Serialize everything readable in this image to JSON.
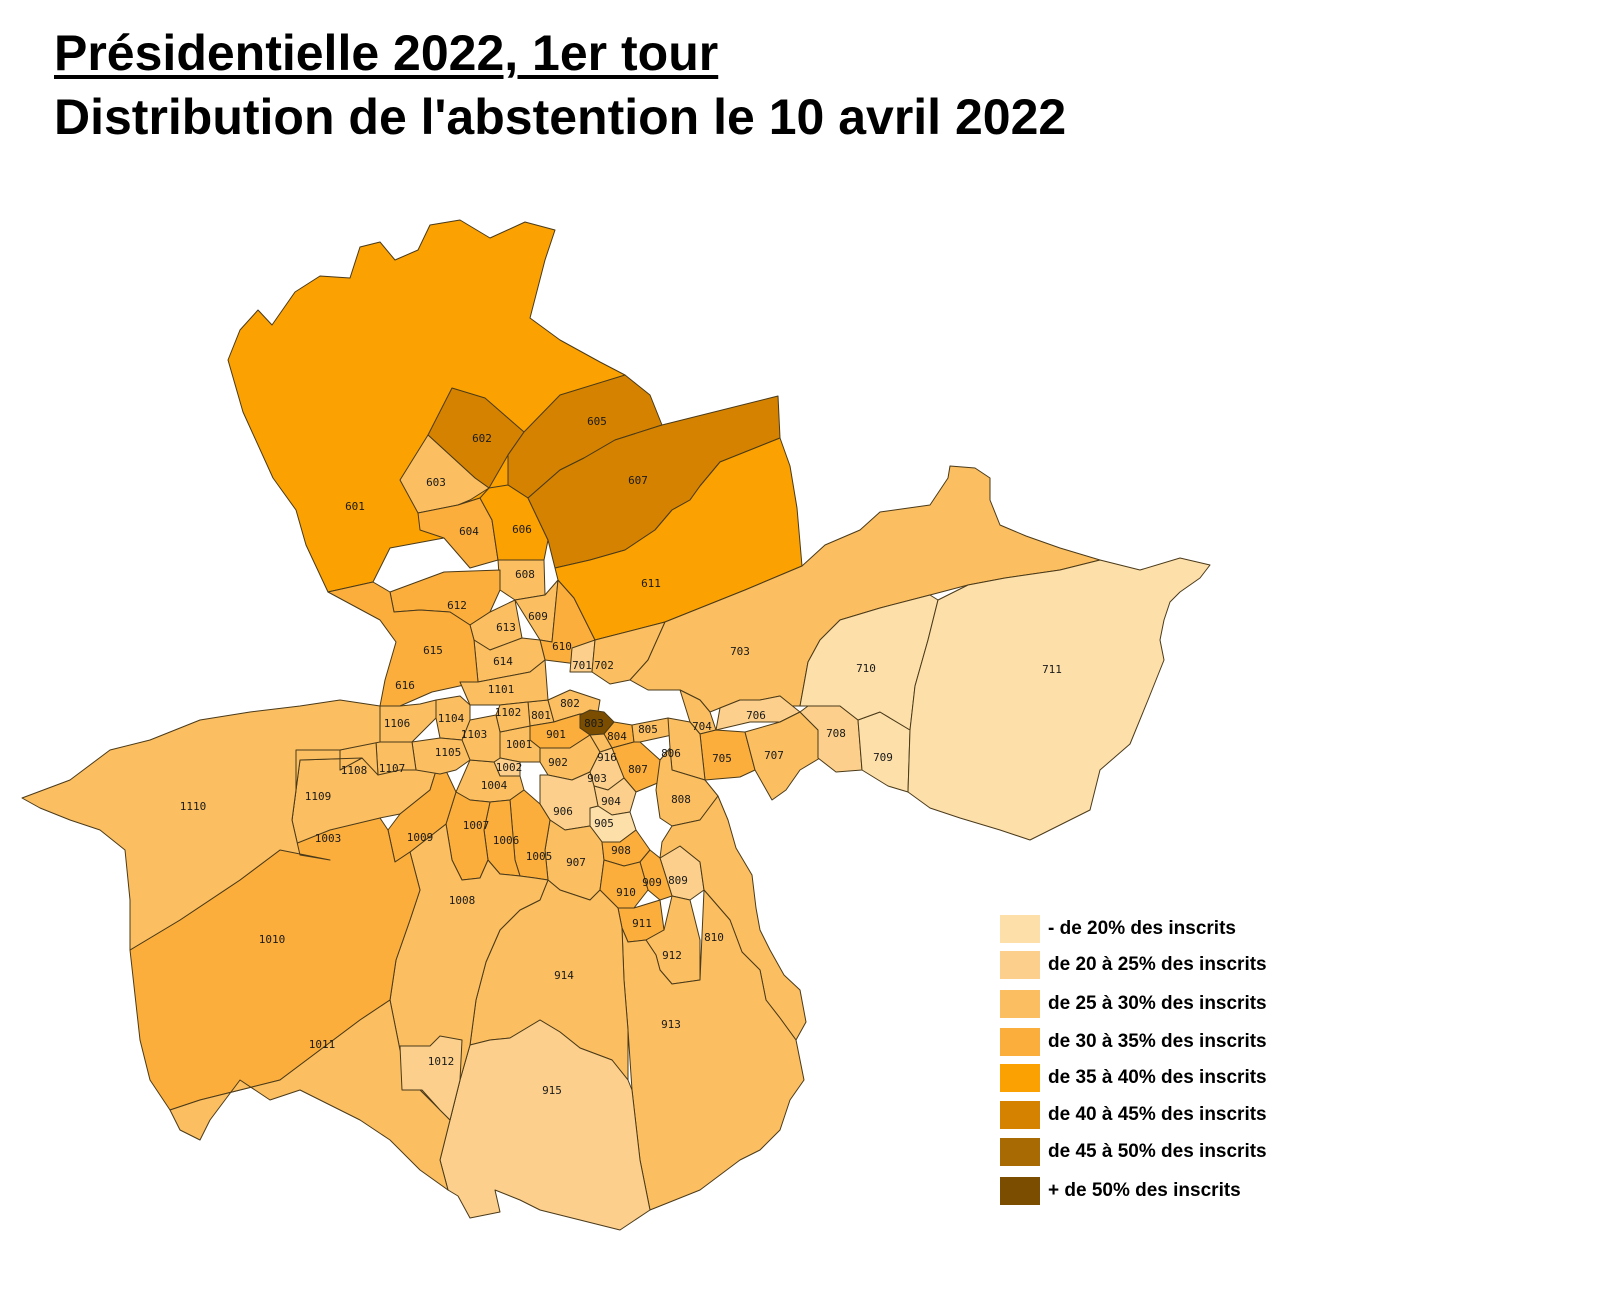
{
  "title_line1": "Présidentielle 2022, 1er tour",
  "title_line2": "Distribution de l'abstention le 10 avril 2022",
  "colors": {
    "c1": "#FDDFAA",
    "c2": "#FCD08C",
    "c3": "#FBBE60",
    "c4": "#FBAE3C",
    "c5": "#FBA101",
    "c6": "#D48200",
    "c7": "#A86A02",
    "c8": "#7A4D00"
  },
  "legend": [
    {
      "label": "- de 20% des inscrits",
      "color": "#FDDFAA"
    },
    {
      "label": "de 20 à 25% des inscrits",
      "color": "#FCD08C"
    },
    {
      "label": "de 25 à 30% des inscrits",
      "color": "#FBBE60"
    },
    {
      "label": "de 30 à 35% des inscrits",
      "color": "#FBAE3C"
    },
    {
      "label": "de 35 à 40% des inscrits",
      "color": "#FBA101"
    },
    {
      "label": "de 40 à 45% des inscrits",
      "color": "#D48200"
    },
    {
      "label": "de 45 à 50% des inscrits",
      "color": "#A86A02"
    },
    {
      "label": "+ de 50% des inscrits",
      "color": "#7A4D00"
    }
  ],
  "bureaux": [
    {
      "id": "601",
      "class": 4
    },
    {
      "id": "602",
      "class": 5
    },
    {
      "id": "603",
      "class": 2
    },
    {
      "id": "604",
      "class": 3
    },
    {
      "id": "605",
      "class": 5
    },
    {
      "id": "606",
      "class": 4
    },
    {
      "id": "607",
      "class": 5
    },
    {
      "id": "608",
      "class": 2
    },
    {
      "id": "609",
      "class": 2
    },
    {
      "id": "610",
      "class": 3
    },
    {
      "id": "611",
      "class": 4
    },
    {
      "id": "612",
      "class": 3
    },
    {
      "id": "613",
      "class": 2
    },
    {
      "id": "614",
      "class": 2
    },
    {
      "id": "615",
      "class": 6
    },
    {
      "id": "616",
      "class": 3
    },
    {
      "id": "701",
      "class": 1
    },
    {
      "id": "702",
      "class": 2
    },
    {
      "id": "703",
      "class": 2
    },
    {
      "id": "704",
      "class": 2
    },
    {
      "id": "705",
      "class": 3
    },
    {
      "id": "706",
      "class": 1
    },
    {
      "id": "707",
      "class": 2
    },
    {
      "id": "708",
      "class": 1
    },
    {
      "id": "709",
      "class": 0
    },
    {
      "id": "710",
      "class": 0
    },
    {
      "id": "711",
      "class": 0
    },
    {
      "id": "801",
      "class": 2
    },
    {
      "id": "802",
      "class": 2
    },
    {
      "id": "803",
      "class": 7
    },
    {
      "id": "804",
      "class": 3
    },
    {
      "id": "805",
      "class": 2
    },
    {
      "id": "806",
      "class": 2
    },
    {
      "id": "807",
      "class": 3
    },
    {
      "id": "808",
      "class": 2
    },
    {
      "id": "809",
      "class": 1
    },
    {
      "id": "810",
      "class": 2
    },
    {
      "id": "901",
      "class": 3
    },
    {
      "id": "902",
      "class": 2
    },
    {
      "id": "903",
      "class": 1
    },
    {
      "id": "904",
      "class": 1
    },
    {
      "id": "905",
      "class": 0
    },
    {
      "id": "906",
      "class": 1
    },
    {
      "id": "907",
      "class": 2
    },
    {
      "id": "908",
      "class": 3
    },
    {
      "id": "909",
      "class": 3
    },
    {
      "id": "910",
      "class": 3
    },
    {
      "id": "911",
      "class": 3
    },
    {
      "id": "912",
      "class": 2
    },
    {
      "id": "913",
      "class": 2
    },
    {
      "id": "914",
      "class": 2
    },
    {
      "id": "915",
      "class": 1
    },
    {
      "id": "916",
      "class": 2
    },
    {
      "id": "1001",
      "class": 2
    },
    {
      "id": "1002",
      "class": 1
    },
    {
      "id": "1003",
      "class": 2
    },
    {
      "id": "1004",
      "class": 2
    },
    {
      "id": "1005",
      "class": 3
    },
    {
      "id": "1006",
      "class": 3
    },
    {
      "id": "1007",
      "class": 3
    },
    {
      "id": "1008",
      "class": 2
    },
    {
      "id": "1009",
      "class": 3
    },
    {
      "id": "1010",
      "class": 3
    },
    {
      "id": "1011",
      "class": 2
    },
    {
      "id": "1012",
      "class": 1
    },
    {
      "id": "1101",
      "class": 2
    },
    {
      "id": "1102",
      "class": 2
    },
    {
      "id": "1103",
      "class": 2
    },
    {
      "id": "1104",
      "class": 2
    },
    {
      "id": "1105",
      "class": 2
    },
    {
      "id": "1106",
      "class": 2
    },
    {
      "id": "1107",
      "class": 2
    },
    {
      "id": "1108",
      "class": 2
    },
    {
      "id": "1109",
      "class": 2
    },
    {
      "id": "1110",
      "class": 2
    }
  ]
}
